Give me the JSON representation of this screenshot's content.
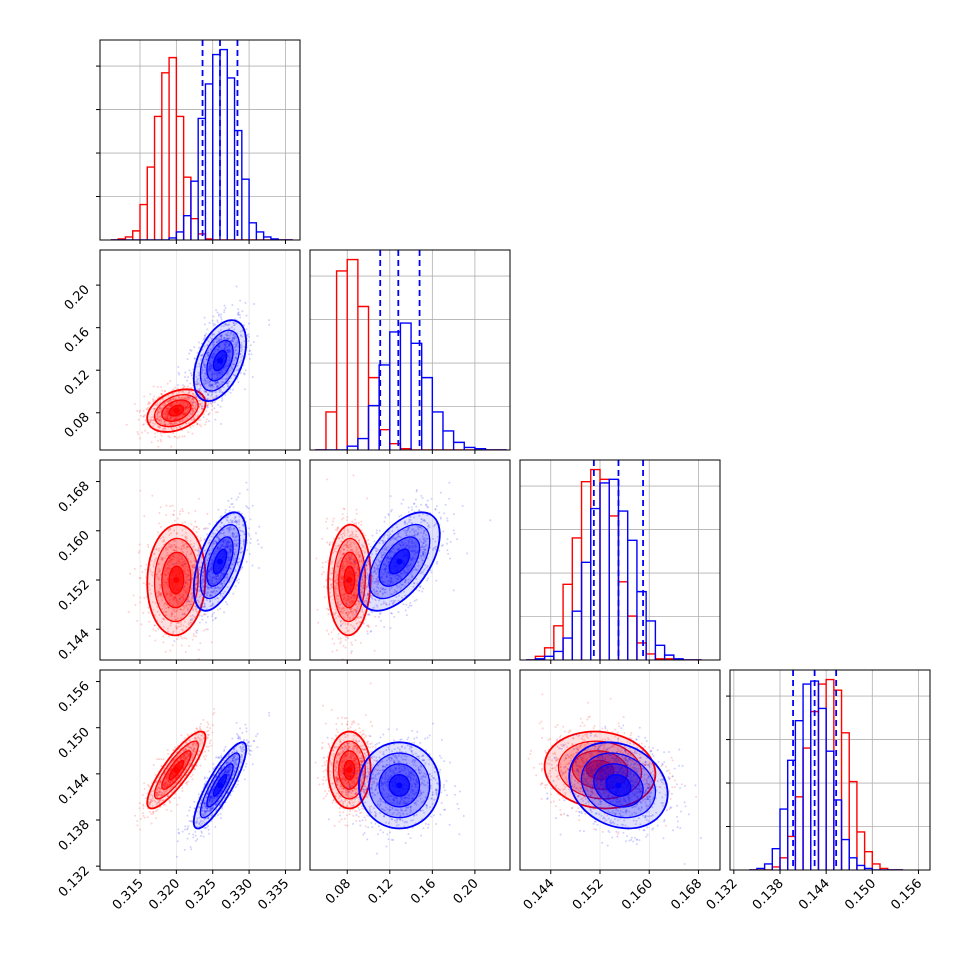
{
  "chart_data": {
    "type": "corner",
    "grid": true,
    "colors": {
      "series_a": "#ff0000",
      "series_b": "#0000ff",
      "grid": "#b0b0b0"
    },
    "parameters": [
      {
        "range": [
          0.3095,
          0.337
        ],
        "ticks": [
          "0.315",
          "0.320",
          "0.325",
          "0.330",
          "0.335"
        ],
        "tick_values": [
          0.315,
          0.32,
          0.325,
          0.33,
          0.335
        ]
      },
      {
        "range": [
          0.045,
          0.233
        ],
        "ticks": [
          "0.08",
          "0.12",
          "0.16",
          "0.20"
        ],
        "tick_values": [
          0.08,
          0.12,
          0.16,
          0.2
        ]
      },
      {
        "range": [
          0.139,
          0.1715
        ],
        "ticks": [
          "0.144",
          "0.152",
          "0.160",
          "0.168"
        ],
        "tick_values": [
          0.144,
          0.152,
          0.16,
          0.168
        ]
      },
      {
        "range": [
          0.1315,
          0.1575
        ],
        "ticks": [
          "0.132",
          "0.138",
          "0.144",
          "0.150",
          "0.156"
        ],
        "tick_values": [
          0.132,
          0.138,
          0.144,
          0.15,
          0.156
        ]
      }
    ],
    "series": [
      {
        "color": "#ff0000",
        "means": [
          0.32,
          0.082,
          0.152,
          0.1445
        ],
        "sigmas": [
          0.002,
          0.01,
          0.0045,
          0.0025
        ],
        "correlations": [
          [
            0,
            1,
            0.35
          ],
          [
            0,
            2,
            0.05
          ],
          [
            0,
            3,
            0.85
          ],
          [
            1,
            2,
            0.05
          ],
          [
            1,
            3,
            0.0
          ],
          [
            2,
            3,
            -0.1
          ]
        ]
      },
      {
        "color": "#0000ff",
        "means": [
          0.326,
          0.129,
          0.155,
          0.1425
        ],
        "sigmas": [
          0.0018,
          0.019,
          0.004,
          0.0028
        ],
        "correlations": [
          [
            0,
            1,
            0.45
          ],
          [
            0,
            2,
            0.55
          ],
          [
            0,
            3,
            0.85
          ],
          [
            1,
            2,
            0.55
          ],
          [
            1,
            3,
            0.0
          ],
          [
            2,
            3,
            -0.2
          ]
        ]
      }
    ],
    "histograms": [
      {
        "bin_edges": [
          0.311,
          0.312,
          0.313,
          0.314,
          0.315,
          0.316,
          0.317,
          0.318,
          0.319,
          0.32,
          0.321,
          0.322,
          0.323,
          0.324,
          0.325,
          0.326,
          0.327,
          0.328,
          0.329,
          0.33,
          0.331,
          0.332,
          0.333,
          0.334,
          0.335,
          0.336
        ],
        "series_a": [
          0,
          1,
          3,
          9,
          35,
          72,
          122,
          165,
          180,
          122,
          62,
          21,
          6,
          1,
          0,
          0,
          0,
          0,
          0,
          0,
          0,
          0,
          0,
          0,
          0
        ],
        "series_b": [
          0,
          0,
          0,
          0,
          0,
          0,
          0,
          0,
          2,
          8,
          24,
          58,
          120,
          154,
          183,
          188,
          160,
          108,
          60,
          17,
          8,
          3,
          1,
          0,
          0
        ],
        "quantile_lines": [
          0.3236,
          0.326,
          0.3284
        ]
      },
      {
        "bin_edges": [
          0.05,
          0.06,
          0.07,
          0.08,
          0.09,
          0.1,
          0.11,
          0.12,
          0.13,
          0.14,
          0.15,
          0.16,
          0.17,
          0.18,
          0.19,
          0.2,
          0.21,
          0.22,
          0.23
        ],
        "series_a": [
          0,
          30,
          141,
          150,
          113,
          57,
          16,
          5,
          1,
          0,
          0,
          0,
          0,
          0,
          0,
          0,
          0,
          0
        ],
        "series_b": [
          0,
          0,
          0,
          3,
          9,
          35,
          67,
          93,
          100,
          84,
          57,
          30,
          15,
          6,
          2,
          1,
          0,
          0
        ],
        "quantile_lines": [
          0.111,
          0.128,
          0.148
        ]
      },
      {
        "bin_edges": [
          0.14,
          0.1415,
          0.143,
          0.1445,
          0.146,
          0.1475,
          0.149,
          0.1505,
          0.152,
          0.1535,
          0.155,
          0.1565,
          0.158,
          0.1595,
          0.161,
          0.1625,
          0.164,
          0.1655,
          0.167,
          0.1685
        ],
        "series_a": [
          0,
          3,
          10,
          28,
          62,
          100,
          146,
          156,
          148,
          118,
          64,
          36,
          14,
          5,
          1,
          1,
          0,
          0,
          0
        ],
        "series_b": [
          0,
          1,
          3,
          7,
          18,
          40,
          80,
          124,
          145,
          148,
          122,
          98,
          56,
          32,
          12,
          4,
          1,
          0,
          0
        ],
        "quantile_lines": [
          0.151,
          0.155,
          0.159
        ]
      },
      {
        "bin_edges": [
          0.134,
          0.135,
          0.136,
          0.137,
          0.138,
          0.139,
          0.14,
          0.141,
          0.142,
          0.143,
          0.144,
          0.145,
          0.146,
          0.147,
          0.148,
          0.149,
          0.15,
          0.151,
          0.152,
          0.153,
          0.154
        ],
        "series_a": [
          0,
          0,
          0,
          2,
          8,
          22,
          48,
          80,
          104,
          122,
          125,
          118,
          90,
          58,
          25,
          12,
          4,
          1,
          0,
          0
        ],
        "series_b": [
          0,
          1,
          4,
          14,
          40,
          72,
          98,
          122,
          124,
          106,
          78,
          46,
          20,
          8,
          3,
          1,
          0,
          0,
          0,
          0
        ],
        "quantile_lines": [
          0.1397,
          0.1425,
          0.1453
        ]
      }
    ]
  }
}
